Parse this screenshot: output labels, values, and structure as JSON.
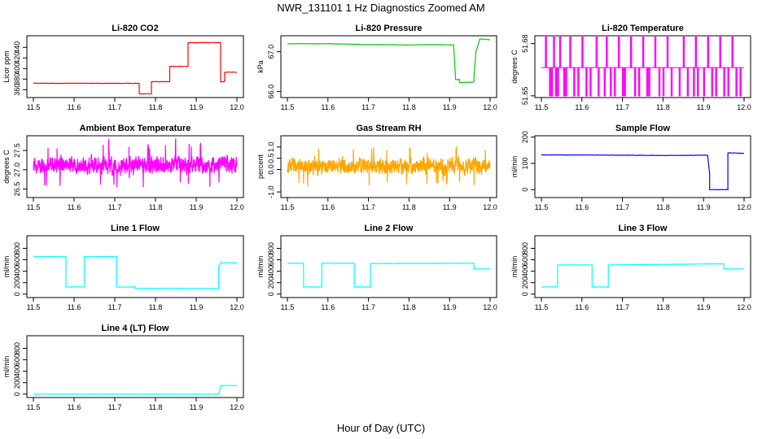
{
  "figure": {
    "title": "NWR_131101  1 Hz Diagnostics Zoomed AM",
    "xlabel": "Hour of Day (UTC)"
  },
  "chart_data": [
    {
      "type": "line",
      "title": "Li-820 CO2",
      "ylabel": "Licor ppm",
      "color": "#ff0000",
      "xlim": [
        11.5,
        12.0
      ],
      "ylim": [
        345,
        462
      ],
      "xticks": [
        "11.5",
        "11.6",
        "11.7",
        "11.8",
        "11.9",
        "12.0"
      ],
      "yticks": [
        360,
        380,
        400,
        420,
        440
      ],
      "series": [
        {
          "x": [
            11.5,
            11.76,
            11.76,
            11.79,
            11.79,
            11.835,
            11.835,
            11.88,
            11.88,
            11.96,
            11.96,
            11.97,
            11.97,
            12.0
          ],
          "values": [
            372,
            372,
            352,
            352,
            375,
            375,
            404,
            404,
            449,
            449,
            375,
            375,
            393,
            393
          ]
        }
      ]
    },
    {
      "type": "line",
      "title": "Li-820 Pressure",
      "ylabel": "kPa",
      "color": "#00cc00",
      "xlim": [
        11.5,
        12.0
      ],
      "ylim": [
        65.85,
        67.4
      ],
      "xticks": [
        "11.5",
        "11.6",
        "11.7",
        "11.8",
        "11.9",
        "12.0"
      ],
      "yticks": [
        66.0,
        67.0
      ],
      "series": [
        {
          "x": [
            11.5,
            11.6,
            11.7,
            11.8,
            11.85,
            11.91,
            11.915,
            11.925,
            11.925,
            11.96,
            11.96,
            11.965,
            11.975,
            12.0
          ],
          "values": [
            67.2,
            67.2,
            67.18,
            67.17,
            67.18,
            67.17,
            66.3,
            66.3,
            66.22,
            66.24,
            66.3,
            67.0,
            67.32,
            67.3
          ]
        }
      ]
    },
    {
      "type": "line",
      "title": "Li-820 Temperature",
      "ylabel": "degrees C",
      "color": "#ff00ff",
      "xlim": [
        11.5,
        12.0
      ],
      "ylim": [
        51.649,
        51.6845
      ],
      "xticks": [
        "11.5",
        "11.6",
        "11.7",
        "11.8",
        "11.9",
        "12.0"
      ],
      "yticks": [
        51.65,
        51.68
      ],
      "series": [
        {
          "toggle_low": 51.65,
          "toggle_high": 51.6662,
          "toggle_top": 51.6845,
          "x": [
            11.51,
            11.52,
            11.525,
            11.53,
            11.535,
            11.54,
            11.545,
            11.555,
            11.56,
            11.57,
            11.58,
            11.59,
            11.6,
            11.61,
            11.62,
            11.635,
            11.64,
            11.655,
            11.66,
            11.67,
            11.68,
            11.69,
            11.7,
            11.705,
            11.72,
            11.73,
            11.74,
            11.75,
            11.76,
            11.765,
            11.78,
            11.79,
            11.8,
            11.81,
            11.82,
            11.84,
            11.85,
            11.86,
            11.875,
            11.88,
            11.885,
            11.9,
            11.91,
            11.92,
            11.93,
            11.94,
            11.95,
            11.96,
            11.97,
            11.98,
            11.99
          ]
        }
      ]
    },
    {
      "type": "line",
      "title": "Ambient Box Temperature",
      "ylabel": "degrees C",
      "color": "#ff00ff",
      "xlim": [
        11.5,
        12.0
      ],
      "ylim": [
        26.28,
        27.88
      ],
      "xticks": [
        "11.5",
        "11.6",
        "11.7",
        "11.8",
        "11.9",
        "12.0"
      ],
      "yticks": [
        26.5,
        27.0,
        27.5
      ],
      "series": [
        {
          "noise": {
            "mean": 27.12,
            "amp": 0.35,
            "min": 26.35,
            "max": 27.85
          }
        }
      ]
    },
    {
      "type": "line",
      "title": "Gas Stream RH",
      "ylabel": "percent",
      "color": "#ffa500",
      "xlim": [
        11.5,
        12.0
      ],
      "ylim": [
        -1.25,
        1.5
      ],
      "xticks": [
        "11.5",
        "11.6",
        "11.7",
        "11.8",
        "11.9",
        "12.0"
      ],
      "yticks": [
        -1.0,
        0.0,
        0.5,
        1.0
      ],
      "series": [
        {
          "noise": {
            "mean": 0.15,
            "amp": 0.55,
            "min": -1.2,
            "max": 1.1
          }
        }
      ]
    },
    {
      "type": "line",
      "title": "Sample Flow",
      "ylabel": "ml/min",
      "color": "#0000ff",
      "xlim": [
        11.5,
        12.0
      ],
      "ylim": [
        -30,
        205
      ],
      "xticks": [
        "11.5",
        "11.6",
        "11.7",
        "11.8",
        "11.9",
        "12.0"
      ],
      "yticks": [
        0,
        100,
        200
      ],
      "series": [
        {
          "x": [
            11.5,
            11.6,
            11.7,
            11.8,
            11.9,
            11.91,
            11.915,
            11.915,
            11.955,
            11.96,
            11.96,
            12.0
          ],
          "values": [
            132,
            132,
            131,
            130,
            131,
            131,
            60,
            0,
            0,
            0,
            140,
            138
          ]
        }
      ]
    },
    {
      "type": "line",
      "title": "Line 1 Flow",
      "ylabel": "ml/min",
      "color": "#00ffff",
      "xlim": [
        11.5,
        12.0
      ],
      "ylim": [
        -60,
        1020
      ],
      "xticks": [
        "11.5",
        "11.6",
        "11.7",
        "11.8",
        "11.9",
        "12.0"
      ],
      "yticks": [
        0,
        200,
        400,
        600,
        800
      ],
      "series": [
        {
          "x": [
            11.5,
            11.58,
            11.58,
            11.625,
            11.625,
            11.705,
            11.705,
            11.75,
            11.75,
            11.955,
            11.955,
            11.96,
            12.0
          ],
          "values": [
            655,
            655,
            125,
            125,
            655,
            655,
            125,
            125,
            100,
            100,
            480,
            545,
            545
          ]
        }
      ]
    },
    {
      "type": "line",
      "title": "Line 2 Flow",
      "ylabel": "ml/min",
      "color": "#00ffff",
      "xlim": [
        11.5,
        12.0
      ],
      "ylim": [
        -60,
        1020
      ],
      "xticks": [
        "11.5",
        "11.6",
        "11.7",
        "11.8",
        "11.9",
        "12.0"
      ],
      "yticks": [
        0,
        200,
        400,
        600,
        800
      ],
      "series": [
        {
          "x": [
            11.5,
            11.54,
            11.54,
            11.585,
            11.585,
            11.665,
            11.665,
            11.705,
            11.705,
            11.96,
            11.96,
            12.0
          ],
          "values": [
            540,
            540,
            125,
            125,
            540,
            540,
            125,
            125,
            535,
            540,
            440,
            440
          ]
        }
      ]
    },
    {
      "type": "line",
      "title": "Line 3 Flow",
      "ylabel": "ml/min",
      "color": "#00ffff",
      "xlim": [
        11.5,
        12.0
      ],
      "ylim": [
        -60,
        1020
      ],
      "xticks": [
        "11.5",
        "11.6",
        "11.7",
        "11.8",
        "11.9",
        "12.0"
      ],
      "yticks": [
        0,
        200,
        400,
        600,
        800
      ],
      "series": [
        {
          "x": [
            11.5,
            11.54,
            11.54,
            11.625,
            11.625,
            11.665,
            11.665,
            11.95,
            11.95,
            12.0
          ],
          "values": [
            125,
            125,
            510,
            510,
            125,
            125,
            510,
            530,
            440,
            440
          ]
        }
      ]
    },
    {
      "type": "line",
      "title": "Line 4 (LT) Flow",
      "ylabel": "ml/min",
      "color": "#00ffff",
      "xlim": [
        11.5,
        12.0
      ],
      "ylim": [
        -60,
        1020
      ],
      "xticks": [
        "11.5",
        "11.6",
        "11.7",
        "11.8",
        "11.9",
        "12.0"
      ],
      "yticks": [
        0,
        200,
        400,
        600,
        800
      ],
      "series": [
        {
          "x": [
            11.5,
            11.955,
            11.96,
            12.0
          ],
          "values": [
            0,
            0,
            150,
            150
          ]
        }
      ]
    }
  ]
}
